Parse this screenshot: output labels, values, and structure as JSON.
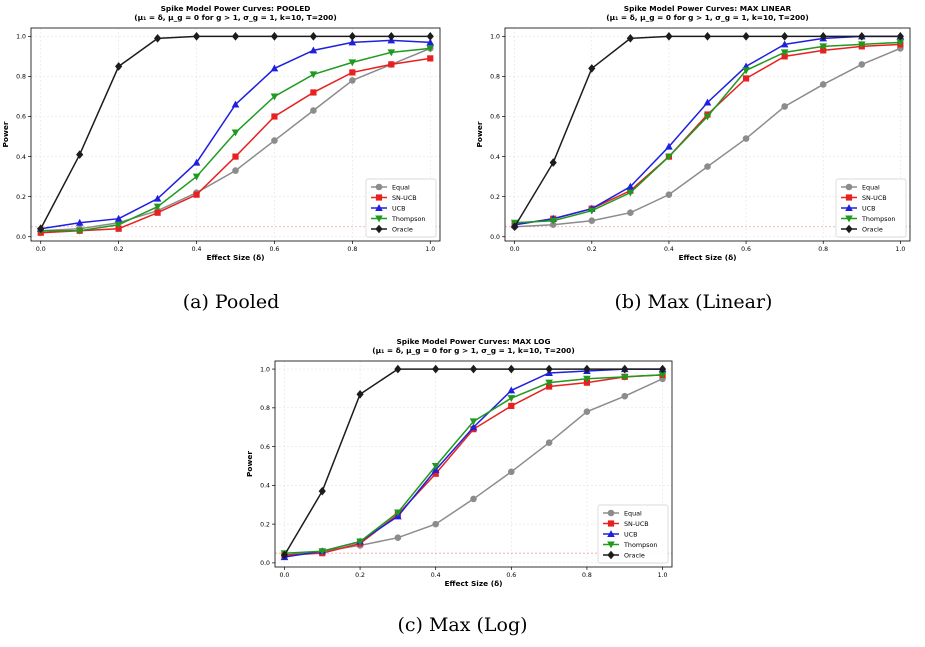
{
  "colors": {
    "Equal": "#8c8c8c",
    "SN-UCB": "#e82020",
    "UCB": "#1f1fe0",
    "Thompson": "#1f9a1f",
    "Oracle": "#1c1c1c",
    "baseline": "#f3a0a0"
  },
  "markers": {
    "Equal": "circle",
    "SN-UCB": "square",
    "UCB": "triangle-up",
    "Thompson": "triangle-down",
    "Oracle": "diamond"
  },
  "captions": [
    "(a) Pooled",
    "(b) Max (Linear)",
    "(c) Max (Log)"
  ],
  "chart_data": [
    {
      "type": "line",
      "title": "Spike Model Power Curves: POOLED",
      "subtitle": "(μ₁ = δ, μ_g = 0 for g > 1, σ_g = 1, k=10, T=200)",
      "xlabel": "Effect Size (δ)",
      "ylabel": "Power",
      "xlim": [
        0,
        1
      ],
      "ylim": [
        0,
        1
      ],
      "x_ticks": [
        "0.0",
        "0.2",
        "0.4",
        "0.6",
        "0.8",
        "1.0"
      ],
      "y_ticks": [
        "0.0",
        "0.2",
        "0.4",
        "0.6",
        "0.8",
        "1.0"
      ],
      "grid": true,
      "legend_position": "lower-right",
      "reference_line": 0.05,
      "x": [
        0.0,
        0.1,
        0.2,
        0.3,
        0.4,
        0.5,
        0.6,
        0.7,
        0.8,
        0.9,
        1.0
      ],
      "series": [
        {
          "name": "Equal",
          "values": [
            0.03,
            0.04,
            0.07,
            0.13,
            0.22,
            0.33,
            0.48,
            0.63,
            0.78,
            0.86,
            0.94
          ]
        },
        {
          "name": "SN-UCB",
          "values": [
            0.02,
            0.03,
            0.04,
            0.12,
            0.21,
            0.4,
            0.6,
            0.72,
            0.82,
            0.86,
            0.89
          ]
        },
        {
          "name": "UCB",
          "values": [
            0.04,
            0.07,
            0.09,
            0.19,
            0.37,
            0.66,
            0.84,
            0.93,
            0.97,
            0.98,
            0.97
          ]
        },
        {
          "name": "Thompson",
          "values": [
            0.03,
            0.03,
            0.06,
            0.15,
            0.3,
            0.52,
            0.7,
            0.81,
            0.87,
            0.92,
            0.94
          ]
        },
        {
          "name": "Oracle",
          "values": [
            0.04,
            0.41,
            0.85,
            0.99,
            1.0,
            1.0,
            1.0,
            1.0,
            1.0,
            1.0,
            1.0
          ]
        }
      ]
    },
    {
      "type": "line",
      "title": "Spike Model Power Curves: MAX LINEAR",
      "subtitle": "(μ₁ = δ, μ_g = 0 for g > 1, σ_g = 1, k=10, T=200)",
      "xlabel": "Effect Size (δ)",
      "ylabel": "Power",
      "xlim": [
        0,
        1
      ],
      "ylim": [
        0,
        1
      ],
      "x_ticks": [
        "0.0",
        "0.2",
        "0.4",
        "0.6",
        "0.8",
        "1.0"
      ],
      "y_ticks": [
        "0.0",
        "0.2",
        "0.4",
        "0.6",
        "0.8",
        "1.0"
      ],
      "grid": true,
      "legend_position": "lower-right",
      "reference_line": 0.05,
      "x": [
        0.0,
        0.1,
        0.2,
        0.3,
        0.4,
        0.5,
        0.6,
        0.7,
        0.8,
        0.9,
        1.0
      ],
      "series": [
        {
          "name": "Equal",
          "values": [
            0.05,
            0.06,
            0.08,
            0.12,
            0.21,
            0.35,
            0.49,
            0.65,
            0.76,
            0.86,
            0.94
          ]
        },
        {
          "name": "SN-UCB",
          "values": [
            0.06,
            0.09,
            0.14,
            0.23,
            0.4,
            0.61,
            0.79,
            0.9,
            0.93,
            0.95,
            0.96
          ]
        },
        {
          "name": "UCB",
          "values": [
            0.06,
            0.09,
            0.14,
            0.25,
            0.45,
            0.67,
            0.85,
            0.96,
            0.99,
            1.0,
            1.0
          ]
        },
        {
          "name": "Thompson",
          "values": [
            0.07,
            0.08,
            0.13,
            0.22,
            0.4,
            0.6,
            0.83,
            0.92,
            0.95,
            0.96,
            0.97
          ]
        },
        {
          "name": "Oracle",
          "values": [
            0.05,
            0.37,
            0.84,
            0.99,
            1.0,
            1.0,
            1.0,
            1.0,
            1.0,
            1.0,
            1.0
          ]
        }
      ]
    },
    {
      "type": "line",
      "title": "Spike Model Power Curves: MAX LOG",
      "subtitle": "(μ₁ = δ, μ_g = 0 for g > 1, σ_g = 1, k=10, T=200)",
      "xlabel": "Effect Size (δ)",
      "ylabel": "Power",
      "xlim": [
        0,
        1
      ],
      "ylim": [
        0,
        1
      ],
      "x_ticks": [
        "0.0",
        "0.2",
        "0.4",
        "0.6",
        "0.8",
        "1.0"
      ],
      "y_ticks": [
        "0.0",
        "0.2",
        "0.4",
        "0.6",
        "0.8",
        "1.0"
      ],
      "grid": true,
      "legend_position": "lower-right",
      "reference_line": 0.05,
      "x": [
        0.0,
        0.1,
        0.2,
        0.3,
        0.4,
        0.5,
        0.6,
        0.7,
        0.8,
        0.9,
        1.0
      ],
      "series": [
        {
          "name": "Equal",
          "values": [
            0.04,
            0.06,
            0.09,
            0.13,
            0.2,
            0.33,
            0.47,
            0.62,
            0.78,
            0.86,
            0.95
          ]
        },
        {
          "name": "SN-UCB",
          "values": [
            0.04,
            0.05,
            0.1,
            0.25,
            0.46,
            0.69,
            0.81,
            0.91,
            0.93,
            0.96,
            0.97
          ]
        },
        {
          "name": "UCB",
          "values": [
            0.03,
            0.06,
            0.11,
            0.24,
            0.48,
            0.7,
            0.89,
            0.98,
            0.99,
            1.0,
            1.0
          ]
        },
        {
          "name": "Thompson",
          "values": [
            0.05,
            0.06,
            0.11,
            0.26,
            0.5,
            0.73,
            0.85,
            0.93,
            0.95,
            0.96,
            0.97
          ]
        },
        {
          "name": "Oracle",
          "values": [
            0.04,
            0.37,
            0.87,
            1.0,
            1.0,
            1.0,
            1.0,
            1.0,
            1.0,
            1.0,
            1.0
          ]
        }
      ]
    }
  ]
}
